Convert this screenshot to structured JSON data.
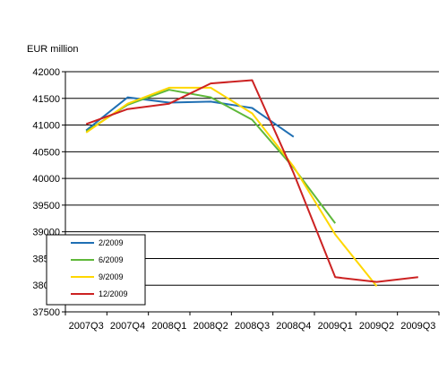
{
  "chart_data": {
    "type": "line",
    "title": "",
    "xlabel": "",
    "ylabel": "EUR million",
    "ylim": [
      37500,
      42000
    ],
    "y_ticks": [
      37500,
      38000,
      38500,
      39000,
      39500,
      40000,
      40500,
      41000,
      41500,
      42000
    ],
    "y_tick_labels": [
      "37500",
      "38000",
      "38500",
      "39000",
      "39500",
      "40000",
      "40500",
      "41000",
      "41500",
      "42000"
    ],
    "categories": [
      "2007Q3",
      "2007Q4",
      "2008Q1",
      "2008Q2",
      "2008Q3",
      "2008Q4",
      "2009Q1",
      "2009Q2",
      "2009Q3"
    ],
    "grid": "horizontal",
    "legend_position": "bottom-left",
    "series": [
      {
        "name": "2/2009",
        "color": "#1f6fb3",
        "values": [
          40900,
          41520,
          41420,
          41440,
          41320,
          40780,
          null,
          null,
          null
        ]
      },
      {
        "name": "6/2009",
        "color": "#5fb83a",
        "values": [
          40880,
          41380,
          41660,
          41520,
          41100,
          40200,
          39160,
          null,
          null
        ]
      },
      {
        "name": "9/2009",
        "color": "#ffd700",
        "values": [
          40860,
          41400,
          41700,
          41700,
          41220,
          40220,
          38950,
          37980,
          null
        ]
      },
      {
        "name": "12/2009",
        "color": "#cc2222",
        "values": [
          41020,
          41300,
          41400,
          41780,
          41840,
          40100,
          38150,
          38060,
          38150
        ]
      }
    ]
  }
}
